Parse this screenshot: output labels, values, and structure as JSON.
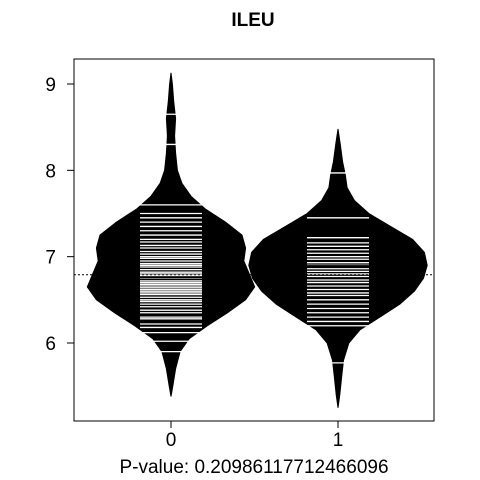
{
  "chart_data": {
    "type": "beanplot",
    "title": "ILEU",
    "xlabel": "P-value: 0.20986117712466096",
    "ylabel": "",
    "categories": [
      "0",
      "1"
    ],
    "ylim": [
      5.2,
      9.3
    ],
    "yticks": [
      6,
      7,
      8,
      9
    ],
    "overall_mean": 6.79,
    "groups": [
      {
        "name": "0",
        "mean": 6.76,
        "density": [
          [
            5.38,
            0.0
          ],
          [
            5.5,
            0.02
          ],
          [
            5.7,
            0.05
          ],
          [
            5.9,
            0.1
          ],
          [
            6.05,
            0.2
          ],
          [
            6.2,
            0.4
          ],
          [
            6.35,
            0.62
          ],
          [
            6.5,
            0.82
          ],
          [
            6.65,
            0.92
          ],
          [
            6.8,
            0.86
          ],
          [
            6.95,
            0.8
          ],
          [
            7.1,
            0.82
          ],
          [
            7.25,
            0.78
          ],
          [
            7.4,
            0.6
          ],
          [
            7.55,
            0.38
          ],
          [
            7.7,
            0.22
          ],
          [
            7.85,
            0.12
          ],
          [
            8.0,
            0.07
          ],
          [
            8.2,
            0.05
          ],
          [
            8.4,
            0.04
          ],
          [
            8.6,
            0.05
          ],
          [
            8.8,
            0.03
          ],
          [
            9.0,
            0.015
          ],
          [
            9.13,
            0.0
          ]
        ],
        "observations": [
          5.9,
          6.02,
          6.12,
          6.18,
          6.22,
          6.28,
          6.3,
          6.35,
          6.38,
          6.42,
          6.45,
          6.48,
          6.5,
          6.53,
          6.56,
          6.58,
          6.6,
          6.62,
          6.64,
          6.66,
          6.68,
          6.7,
          6.72,
          6.75,
          6.78,
          6.8,
          6.82,
          6.85,
          6.88,
          6.9,
          6.92,
          6.95,
          6.98,
          7.0,
          7.03,
          7.06,
          7.1,
          7.13,
          7.17,
          7.2,
          7.25,
          7.3,
          7.35,
          7.4,
          7.45,
          7.5,
          7.6,
          8.3,
          8.65
        ]
      },
      {
        "name": "1",
        "mean": 6.89,
        "density": [
          [
            5.25,
            0.0
          ],
          [
            5.4,
            0.02
          ],
          [
            5.6,
            0.04
          ],
          [
            5.8,
            0.06
          ],
          [
            6.0,
            0.12
          ],
          [
            6.15,
            0.24
          ],
          [
            6.3,
            0.46
          ],
          [
            6.45,
            0.68
          ],
          [
            6.6,
            0.84
          ],
          [
            6.75,
            0.94
          ],
          [
            6.9,
            0.98
          ],
          [
            7.05,
            0.95
          ],
          [
            7.2,
            0.82
          ],
          [
            7.35,
            0.58
          ],
          [
            7.5,
            0.34
          ],
          [
            7.65,
            0.18
          ],
          [
            7.8,
            0.1
          ],
          [
            7.95,
            0.08
          ],
          [
            8.1,
            0.05
          ],
          [
            8.3,
            0.025
          ],
          [
            8.48,
            0.0
          ]
        ],
        "observations": [
          5.77,
          6.2,
          6.25,
          6.3,
          6.35,
          6.4,
          6.45,
          6.5,
          6.55,
          6.58,
          6.62,
          6.66,
          6.7,
          6.73,
          6.77,
          6.8,
          6.83,
          6.86,
          6.9,
          6.93,
          6.97,
          7.0,
          7.04,
          7.08,
          7.12,
          7.16,
          7.22,
          7.45,
          7.97
        ]
      }
    ]
  }
}
